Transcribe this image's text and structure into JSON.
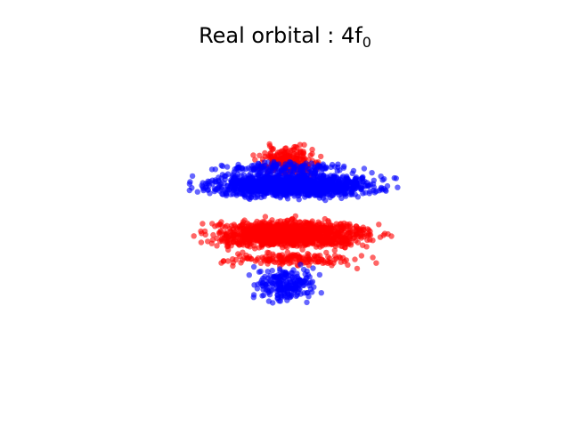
{
  "chart_data": {
    "type": "scatter",
    "title": "Real orbital : 4f",
    "title_subscript": "0",
    "axes_visible": false,
    "grid": false,
    "xlim": [
      -1.0,
      1.0
    ],
    "ylim": [
      -1.0,
      1.0
    ],
    "series": [
      {
        "color": "#ff0000",
        "regions": [
          {
            "x_range": [
              -0.33,
              0.33
            ],
            "y_range": [
              0.36,
              0.78
            ],
            "count": 220
          },
          {
            "x_range": [
              -0.85,
              0.87
            ],
            "y_range": [
              -0.3,
              0.08
            ],
            "count": 1300
          },
          {
            "x_range": [
              -0.7,
              0.7
            ],
            "y_range": [
              -0.44,
              -0.25
            ],
            "count": 160
          }
        ]
      },
      {
        "color": "#0000ff",
        "regions": [
          {
            "x_range": [
              -0.9,
              0.95
            ],
            "y_range": [
              0.18,
              0.52
            ],
            "count": 1300
          },
          {
            "x_range": [
              -0.38,
              0.33
            ],
            "y_range": [
              -0.82,
              -0.34
            ],
            "count": 220
          },
          {
            "x_range": [
              -0.75,
              0.75
            ],
            "y_range": [
              0.42,
              0.6
            ],
            "count": 140
          }
        ]
      }
    ]
  }
}
